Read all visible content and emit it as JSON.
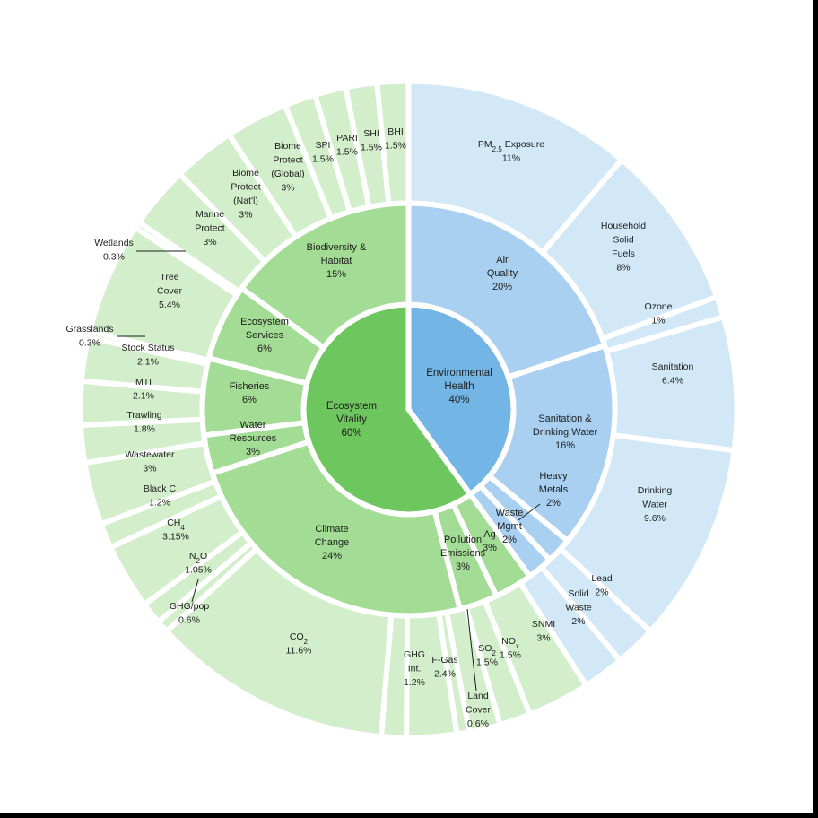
{
  "colors": {
    "health_inner": "#73b6e6",
    "health_mid": "#a9d0f0",
    "health_outer": "#d2e8f7",
    "vitality_inner": "#6ec65e",
    "vitality_mid": "#a3dc94",
    "vitality_outer": "#d3eecb"
  },
  "chart_data": {
    "type": "sunburst",
    "title": "",
    "objectives": [
      {
        "name": "Environmental Health",
        "value": 40,
        "label": "40%",
        "family": "health"
      },
      {
        "name": "Ecosystem Vitality",
        "value": 60,
        "label": "60%",
        "family": "vitality"
      }
    ],
    "categories": [
      {
        "name": "Air Quality",
        "value": 20,
        "label": "20%",
        "family": "health"
      },
      {
        "name": "Sanitation & Drinking Water",
        "value": 16,
        "label": "16%",
        "family": "health"
      },
      {
        "name": "Heavy Metals",
        "value": 2,
        "label": "2%",
        "family": "health"
      },
      {
        "name": "Waste Mgmt",
        "value": 2,
        "label": "2%",
        "family": "health"
      },
      {
        "name": "Pollution Emissions",
        "value": 3,
        "label": "3%",
        "family": "vitality"
      },
      {
        "name": "Ag",
        "value": 3,
        "label": "3%",
        "family": "vitality"
      },
      {
        "name": "Climate Change",
        "value": 24,
        "label": "24%",
        "family": "vitality"
      },
      {
        "name": "Water Resources",
        "value": 3,
        "label": "3%",
        "family": "vitality"
      },
      {
        "name": "Fisheries",
        "value": 6,
        "label": "6%",
        "family": "vitality"
      },
      {
        "name": "Ecosystem Services",
        "value": 6,
        "label": "6%",
        "family": "vitality"
      },
      {
        "name": "Biodiversity & Habitat",
        "value": 15,
        "label": "15%",
        "family": "vitality"
      }
    ],
    "indicators": [
      {
        "name": "PM2.5 Exposure",
        "value": 11,
        "label": "11%",
        "family": "health"
      },
      {
        "name": "Household Solid Fuels",
        "value": 8,
        "label": "8%",
        "family": "health"
      },
      {
        "name": "Ozone",
        "value": 1,
        "label": "1%",
        "family": "health"
      },
      {
        "name": "Sanitation",
        "value": 6.4,
        "label": "6.4%",
        "family": "health"
      },
      {
        "name": "Drinking Water",
        "value": 9.6,
        "label": "9.6%",
        "family": "health"
      },
      {
        "name": "Lead",
        "value": 2,
        "label": "2%",
        "family": "health"
      },
      {
        "name": "Solid Waste",
        "value": 2,
        "label": "2%",
        "family": "health"
      },
      {
        "name": "SNMI",
        "value": 3,
        "label": "3%",
        "family": "vitality"
      },
      {
        "name": "NOx",
        "value": 1.5,
        "label": "1.5%",
        "family": "vitality"
      },
      {
        "name": "SO2",
        "value": 1.5,
        "label": "1.5%",
        "family": "vitality"
      },
      {
        "name": "Land Cover",
        "value": 0.6,
        "label": "0.6%",
        "family": "vitality"
      },
      {
        "name": "F-Gas",
        "value": 2.4,
        "label": "2.4%",
        "family": "vitality"
      },
      {
        "name": "GHG Int.",
        "value": 1.2,
        "label": "1.2%",
        "family": "vitality"
      },
      {
        "name": "CO2",
        "value": 11.6,
        "label": "11.6%",
        "family": "vitality"
      },
      {
        "name": "GHG/pop",
        "value": 0.6,
        "label": "0.6%",
        "family": "vitality"
      },
      {
        "name": "N2O",
        "value": 1.05,
        "label": "1.05%",
        "family": "vitality"
      },
      {
        "name": "CH4",
        "value": 3.15,
        "label": "3.15%",
        "family": "vitality"
      },
      {
        "name": "Black C",
        "value": 1.2,
        "label": "1.2%",
        "family": "vitality"
      },
      {
        "name": "Wastewater",
        "value": 3,
        "label": "3%",
        "family": "vitality"
      },
      {
        "name": "Trawling",
        "value": 1.8,
        "label": "1.8%",
        "family": "vitality"
      },
      {
        "name": "MTI",
        "value": 2.1,
        "label": "2.1%",
        "family": "vitality"
      },
      {
        "name": "Stock Status",
        "value": 2.1,
        "label": "2.1%",
        "family": "vitality"
      },
      {
        "name": "Grasslands",
        "value": 0.3,
        "label": "0.3%",
        "family": "vitality"
      },
      {
        "name": "Tree Cover",
        "value": 5.4,
        "label": "5.4%",
        "family": "vitality"
      },
      {
        "name": "Wetlands",
        "value": 0.3,
        "label": "0.3%",
        "family": "vitality"
      },
      {
        "name": "Marine Protect",
        "value": 3,
        "label": "3%",
        "family": "vitality"
      },
      {
        "name": "Biome Protect (Nat'l)",
        "value": 3,
        "label": "3%",
        "family": "vitality"
      },
      {
        "name": "Biome Protect (Global)",
        "value": 3,
        "label": "3%",
        "family": "vitality"
      },
      {
        "name": "SPI",
        "value": 1.5,
        "label": "1.5%",
        "family": "vitality"
      },
      {
        "name": "PARI",
        "value": 1.5,
        "label": "1.5%",
        "family": "vitality"
      },
      {
        "name": "SHI",
        "value": 1.5,
        "label": "1.5%",
        "family": "vitality"
      },
      {
        "name": "BHI",
        "value": 1.5,
        "label": "1.5%",
        "family": "vitality"
      }
    ]
  }
}
